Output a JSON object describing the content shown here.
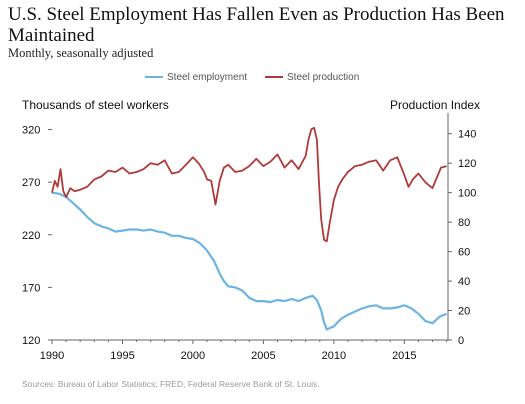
{
  "header": {
    "title": "U.S. Steel Employment Has Fallen Even as Production Has Been Maintained",
    "subtitle": "Monthly, seasonally adjusted"
  },
  "footer": {
    "source": "Sources: Bureau of Labor Statistics; FRED, Federal Reserve Bank of St. Louis."
  },
  "colors": {
    "employment": "#6cb4e4",
    "production": "#b03a3a",
    "axis": "#666666"
  },
  "chart_data": {
    "type": "line",
    "title": "U.S. Steel Employment Has Fallen Even as Production Has Been Maintained",
    "subtitle": "Monthly, seasonally adjusted",
    "left_axis_label": "Thousands of steel workers",
    "right_axis_label": "Production Index",
    "left_ylim": [
      120,
      330
    ],
    "right_ylim": [
      0,
      150
    ],
    "left_ticks": [
      120,
      170,
      220,
      270,
      320
    ],
    "right_ticks": [
      0,
      20,
      40,
      60,
      80,
      100,
      120,
      140
    ],
    "xlim": [
      1990,
      2018.1
    ],
    "x_ticks": [
      1990,
      1995,
      2000,
      2005,
      2010,
      2015
    ],
    "legend_position": "top-center",
    "grid": false,
    "series": [
      {
        "name": "Steel employment",
        "axis": "left",
        "color": "#6cb4e4",
        "x": [
          1990.0,
          1990.5,
          1991.0,
          1991.5,
          1992.0,
          1992.5,
          1993.0,
          1993.5,
          1994.0,
          1994.5,
          1995.0,
          1995.5,
          1996.0,
          1996.5,
          1997.0,
          1997.5,
          1998.0,
          1998.5,
          1999.0,
          1999.5,
          2000.0,
          2000.5,
          2001.0,
          2001.5,
          2001.9,
          2002.2,
          2002.5,
          2003.0,
          2003.5,
          2004.0,
          2004.5,
          2005.0,
          2005.5,
          2006.0,
          2006.5,
          2007.0,
          2007.5,
          2008.0,
          2008.5,
          2008.8,
          2009.1,
          2009.3,
          2009.5,
          2010.0,
          2010.5,
          2011.0,
          2011.5,
          2012.0,
          2012.5,
          2013.0,
          2013.5,
          2014.0,
          2014.5,
          2015.0,
          2015.5,
          2016.0,
          2016.5,
          2017.0,
          2017.5,
          2018.0
        ],
        "y": [
          260,
          259,
          256,
          250,
          244,
          237,
          231,
          228,
          226,
          223,
          224,
          225,
          225,
          224,
          225,
          223,
          222,
          219,
          219,
          217,
          216,
          212,
          205,
          195,
          183,
          176,
          171,
          170,
          167,
          160,
          157,
          157,
          156,
          158,
          157,
          159,
          157,
          160,
          162,
          158,
          148,
          137,
          130,
          133,
          140,
          144,
          147,
          150,
          152,
          153,
          150,
          150,
          151,
          153,
          150,
          145,
          138,
          136,
          142,
          145
        ]
      },
      {
        "name": "Steel production",
        "axis": "right",
        "color": "#b03a3a",
        "x": [
          1990.0,
          1990.2,
          1990.4,
          1990.6,
          1990.8,
          1991.0,
          1991.3,
          1991.6,
          1992.0,
          1992.5,
          1993.0,
          1993.5,
          1994.0,
          1994.5,
          1995.0,
          1995.5,
          1996.0,
          1996.5,
          1997.0,
          1997.5,
          1998.0,
          1998.5,
          1999.0,
          1999.5,
          2000.0,
          2000.4,
          2000.8,
          2001.0,
          2001.3,
          2001.6,
          2001.9,
          2002.2,
          2002.5,
          2003.0,
          2003.5,
          2004.0,
          2004.5,
          2005.0,
          2005.5,
          2006.0,
          2006.5,
          2007.0,
          2007.5,
          2008.0,
          2008.2,
          2008.4,
          2008.6,
          2008.8,
          2008.95,
          2009.1,
          2009.3,
          2009.5,
          2009.7,
          2010.0,
          2010.3,
          2010.6,
          2011.0,
          2011.5,
          2012.0,
          2012.5,
          2013.0,
          2013.5,
          2014.0,
          2014.5,
          2015.0,
          2015.3,
          2015.6,
          2016.0,
          2016.5,
          2017.0,
          2017.3,
          2017.6,
          2018.0
        ],
        "y": [
          100,
          108,
          104,
          116,
          101,
          97,
          103,
          101,
          102,
          104,
          109,
          111,
          115,
          114,
          117,
          113,
          114,
          116,
          120,
          119,
          122,
          113,
          114,
          119,
          124,
          120,
          114,
          109,
          108,
          92,
          108,
          117,
          119,
          114,
          115,
          118,
          123,
          118,
          121,
          126,
          117,
          122,
          116,
          125,
          136,
          143,
          144,
          136,
          105,
          82,
          68,
          67,
          79,
          95,
          104,
          109,
          114,
          118,
          119,
          121,
          122,
          115,
          122,
          124,
          112,
          104,
          109,
          113,
          107,
          103,
          110,
          117,
          118
        ]
      }
    ]
  }
}
